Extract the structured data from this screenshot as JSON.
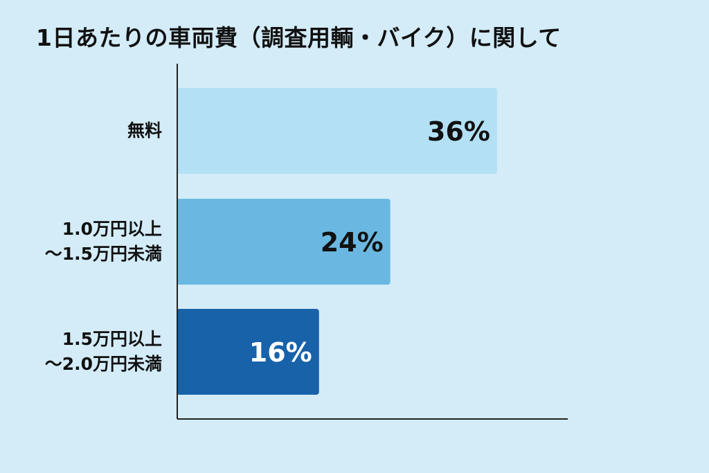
{
  "chart_data": {
    "type": "bar",
    "orientation": "horizontal",
    "title": "1日あたりの車両費（調査用輌・バイク）に関して",
    "categories": [
      [
        "無料"
      ],
      [
        "1.0万円以上",
        "〜1.5万円未満"
      ],
      [
        "1.5万円以上",
        "〜2.0万円未満"
      ]
    ],
    "values": [
      36,
      24,
      16
    ],
    "value_labels": [
      "36%",
      "24%",
      "16%"
    ],
    "unit": "%",
    "xlim": [
      0,
      44
    ],
    "grid": false,
    "legend": "none",
    "colors": [
      "#b3e0f5",
      "#6ab8e1",
      "#1862aa"
    ],
    "label_colors": [
      "#111111",
      "#111111",
      "#ffffff"
    ],
    "axis_color": "#222222"
  }
}
